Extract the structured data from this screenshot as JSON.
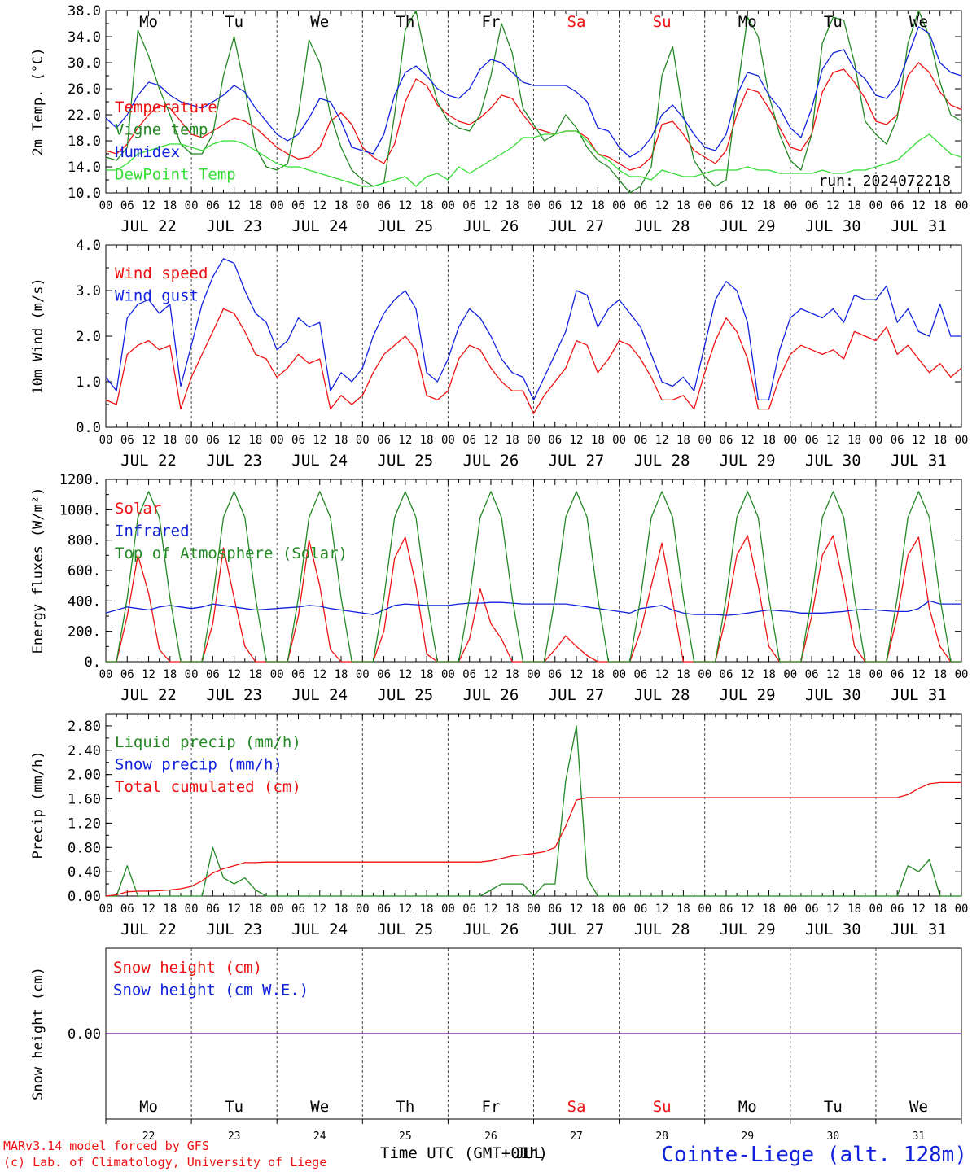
{
  "colors": {
    "red": "#ee1111",
    "green": "#228822",
    "blue": "#1122dd",
    "lightgreen": "#33dd33",
    "purple": "#7733aa",
    "grid": "#444444"
  },
  "days": {
    "names": [
      "Mo",
      "Tu",
      "We",
      "Th",
      "Fr",
      "Sa",
      "Su",
      "Mo",
      "Tu",
      "We"
    ],
    "weekend": [
      false,
      false,
      false,
      false,
      false,
      true,
      true,
      false,
      false,
      false
    ],
    "dates": [
      "JUL 22",
      "JUL 23",
      "JUL 24",
      "JUL 25",
      "JUL 26",
      "JUL 27",
      "JUL 28",
      "JUL 29",
      "JUL 30",
      "JUL 31"
    ],
    "numbers": [
      "22",
      "23",
      "24",
      "25",
      "26",
      "27",
      "28",
      "29",
      "30",
      "31"
    ],
    "hour_ticks": [
      "00",
      "06",
      "12",
      "18"
    ],
    "final_tick": "00"
  },
  "footer": {
    "model": "MARv3.14 model forced by GFS",
    "lab": "(c) Lab. of Climatology, University of Liege",
    "xlabel": "Time UTC (GMT+01h)",
    "overlay": "JUL",
    "station": "Cointe-Liege (alt. 128m)"
  },
  "chart_data": [
    {
      "id": "temperature",
      "type": "line",
      "ylabel": "2m Temp. (°C)",
      "ylim": [
        10,
        38
      ],
      "yticks": [
        "10.0",
        "14.0",
        "18.0",
        "22.0",
        "26.0",
        "30.0",
        "34.0",
        "38.0"
      ],
      "annotation": "run: 2024072218",
      "x": "hours since JUL 22 00 UTC, every 3 h",
      "series": [
        {
          "name": "Temperature",
          "color": "red",
          "values": [
            16.5,
            16.0,
            17.5,
            20.0,
            22.0,
            23.5,
            23.0,
            21.0,
            19.0,
            18.5,
            19.5,
            20.5,
            21.5,
            21.0,
            20.0,
            18.5,
            17.0,
            16.0,
            15.2,
            15.5,
            17.0,
            21.0,
            22.3,
            20.5,
            17.0,
            15.5,
            14.5,
            17.5,
            24.0,
            27.5,
            26.5,
            23.5,
            22.0,
            21.0,
            20.5,
            21.5,
            23.0,
            25.0,
            24.5,
            22.0,
            20.0,
            19.5,
            19.0,
            19.5,
            19.5,
            18.5,
            16.0,
            15.5,
            14.5,
            13.5,
            14.0,
            15.5,
            20.5,
            21.0,
            19.0,
            16.5,
            15.5,
            14.5,
            16.5,
            22.0,
            26.0,
            25.5,
            23.0,
            20.0,
            17.0,
            16.5,
            19.0,
            25.5,
            28.5,
            29.0,
            27.0,
            24.5,
            21.0,
            20.5,
            22.0,
            28.0,
            30.0,
            28.5,
            25.5,
            23.5,
            22.8
          ]
        },
        {
          "name": "Vigne temp",
          "color": "green",
          "values": [
            15.5,
            15.0,
            17.0,
            35.0,
            31.0,
            26.0,
            22.0,
            17.5,
            16.0,
            16.0,
            19.0,
            28.0,
            34.0,
            26.0,
            17.0,
            14.0,
            13.5,
            14.5,
            22.0,
            33.5,
            30.0,
            22.0,
            17.0,
            13.5,
            12.0,
            11.0,
            11.5,
            22.0,
            35.0,
            38.0,
            30.0,
            24.0,
            21.0,
            20.0,
            19.5,
            22.0,
            28.0,
            36.0,
            31.5,
            23.0,
            20.5,
            18.0,
            19.0,
            22.0,
            20.0,
            17.0,
            15.0,
            14.0,
            12.0,
            10.0,
            11.0,
            14.0,
            28.0,
            32.5,
            22.0,
            15.0,
            12.5,
            11.0,
            12.0,
            25.0,
            37.0,
            34.0,
            25.0,
            19.0,
            15.0,
            13.5,
            19.0,
            33.0,
            37.0,
            36.5,
            30.0,
            21.0,
            19.0,
            17.5,
            21.5,
            33.0,
            38.0,
            34.0,
            27.0,
            22.0,
            21.0
          ]
        },
        {
          "name": "Humidex",
          "color": "blue",
          "values": [
            21.5,
            20.0,
            22.0,
            25.0,
            27.0,
            26.5,
            25.0,
            24.0,
            23.5,
            23.0,
            24.0,
            25.0,
            26.5,
            25.5,
            23.0,
            21.0,
            19.0,
            18.0,
            19.0,
            21.5,
            24.5,
            24.0,
            21.0,
            17.0,
            16.5,
            16.0,
            19.0,
            25.0,
            28.5,
            29.5,
            28.0,
            26.0,
            25.0,
            24.5,
            26.0,
            29.0,
            30.5,
            30.0,
            28.5,
            27.0,
            26.5,
            26.5,
            26.5,
            26.5,
            25.5,
            24.0,
            20.0,
            19.5,
            17.0,
            15.5,
            16.5,
            18.5,
            22.0,
            23.5,
            21.5,
            19.0,
            17.0,
            16.5,
            19.0,
            25.0,
            28.5,
            28.0,
            25.0,
            23.0,
            20.0,
            18.5,
            23.0,
            29.0,
            31.5,
            32.0,
            29.0,
            27.5,
            25.0,
            24.5,
            26.5,
            31.0,
            35.5,
            34.5,
            30.0,
            28.5,
            28.0
          ]
        },
        {
          "name": "DewPoint Temp",
          "color": "lightgreen",
          "values": [
            13.5,
            13.5,
            14.5,
            16.0,
            16.5,
            17.0,
            17.5,
            17.5,
            17.0,
            16.5,
            17.5,
            18.0,
            18.0,
            17.5,
            16.5,
            15.5,
            14.5,
            14.0,
            14.0,
            13.5,
            13.0,
            12.5,
            12.0,
            11.5,
            11.0,
            11.0,
            11.5,
            12.0,
            12.5,
            11.0,
            12.5,
            13.0,
            12.0,
            14.0,
            13.0,
            14.0,
            15.0,
            16.0,
            17.0,
            18.5,
            18.5,
            19.0,
            19.0,
            19.5,
            19.5,
            18.0,
            16.0,
            15.0,
            13.5,
            12.5,
            12.5,
            12.0,
            13.5,
            13.0,
            12.5,
            12.5,
            13.0,
            13.5,
            13.5,
            13.5,
            14.0,
            13.5,
            13.5,
            13.0,
            13.0,
            13.0,
            13.0,
            13.5,
            13.0,
            13.0,
            13.5,
            13.5,
            14.0,
            14.5,
            15.0,
            16.5,
            18.0,
            19.0,
            17.5,
            16.0,
            15.5
          ]
        }
      ]
    },
    {
      "id": "wind",
      "type": "line",
      "ylabel": "10m Wind (m/s)",
      "ylim": [
        0,
        4
      ],
      "yticks": [
        "0.0",
        "1.0",
        "2.0",
        "3.0",
        "4.0"
      ],
      "x": "hours since JUL 22 00 UTC, every 3 h",
      "series": [
        {
          "name": "Wind speed",
          "color": "red",
          "values": [
            0.6,
            0.5,
            1.6,
            1.8,
            1.9,
            1.7,
            1.8,
            0.4,
            1.1,
            1.6,
            2.1,
            2.6,
            2.5,
            2.1,
            1.6,
            1.5,
            1.1,
            1.3,
            1.6,
            1.4,
            1.5,
            0.4,
            0.7,
            0.5,
            0.7,
            1.2,
            1.6,
            1.8,
            2.0,
            1.7,
            0.7,
            0.6,
            0.8,
            1.5,
            1.8,
            1.7,
            1.3,
            1.0,
            0.8,
            0.8,
            0.3,
            0.7,
            1.0,
            1.3,
            1.9,
            1.8,
            1.2,
            1.5,
            1.9,
            1.8,
            1.5,
            1.1,
            0.6,
            0.6,
            0.7,
            0.4,
            1.2,
            1.9,
            2.4,
            2.1,
            1.5,
            0.4,
            0.4,
            1.1,
            1.6,
            1.8,
            1.7,
            1.6,
            1.7,
            1.5,
            2.1,
            2.0,
            1.9,
            2.2,
            1.6,
            1.8,
            1.5,
            1.2,
            1.4,
            1.1,
            1.3
          ]
        },
        {
          "name": "Wind gust",
          "color": "blue",
          "values": [
            1.1,
            0.8,
            2.4,
            2.7,
            2.8,
            2.5,
            2.7,
            0.9,
            1.8,
            2.7,
            3.3,
            3.7,
            3.6,
            3.0,
            2.5,
            2.3,
            1.7,
            1.9,
            2.4,
            2.2,
            2.3,
            0.8,
            1.2,
            1.0,
            1.3,
            2.0,
            2.5,
            2.8,
            3.0,
            2.6,
            1.2,
            1.0,
            1.5,
            2.2,
            2.6,
            2.4,
            2.0,
            1.5,
            1.2,
            1.1,
            0.6,
            1.1,
            1.6,
            2.1,
            3.0,
            2.9,
            2.2,
            2.6,
            2.8,
            2.5,
            2.2,
            1.6,
            1.0,
            0.9,
            1.1,
            0.8,
            1.8,
            2.8,
            3.2,
            3.0,
            2.3,
            0.6,
            0.6,
            1.7,
            2.4,
            2.6,
            2.5,
            2.4,
            2.6,
            2.3,
            2.9,
            2.8,
            2.8,
            3.1,
            2.3,
            2.6,
            2.1,
            2.0,
            2.7,
            2.0,
            2.0
          ]
        }
      ]
    },
    {
      "id": "energy",
      "type": "line",
      "ylabel": "Energy fluxes (W/m²)",
      "ylim": [
        0,
        1200
      ],
      "yticks": [
        "0.",
        "200.",
        "400.",
        "600.",
        "800.",
        "1000.",
        "1200."
      ],
      "x": "hours since JUL 22 00 UTC, every 3 h",
      "series": [
        {
          "name": "Solar",
          "color": "red",
          "values": [
            0,
            0,
            300,
            700,
            450,
            80,
            0,
            0,
            0,
            0,
            250,
            750,
            420,
            100,
            0,
            0,
            0,
            0,
            300,
            800,
            500,
            80,
            0,
            0,
            0,
            0,
            200,
            680,
            820,
            500,
            50,
            0,
            0,
            0,
            150,
            480,
            250,
            150,
            0,
            0,
            0,
            0,
            80,
            170,
            100,
            40,
            0,
            0,
            0,
            0,
            200,
            500,
            780,
            400,
            0,
            0,
            0,
            0,
            300,
            700,
            830,
            500,
            100,
            0,
            0,
            0,
            300,
            700,
            830,
            500,
            100,
            0,
            0,
            0,
            300,
            700,
            820,
            350,
            100,
            0,
            0
          ]
        },
        {
          "name": "Infrared",
          "color": "blue",
          "values": [
            320,
            340,
            360,
            350,
            340,
            360,
            370,
            360,
            350,
            360,
            380,
            370,
            360,
            350,
            340,
            345,
            350,
            355,
            360,
            370,
            365,
            350,
            340,
            330,
            320,
            310,
            340,
            370,
            380,
            375,
            370,
            370,
            370,
            380,
            385,
            385,
            390,
            390,
            385,
            380,
            380,
            380,
            380,
            380,
            370,
            360,
            350,
            340,
            330,
            320,
            350,
            360,
            370,
            340,
            320,
            310,
            310,
            310,
            305,
            310,
            320,
            330,
            340,
            335,
            330,
            320,
            320,
            320,
            325,
            330,
            340,
            345,
            340,
            335,
            330,
            330,
            350,
            400,
            380,
            380,
            380
          ]
        },
        {
          "name": "Top of Atmosphere (Solar)",
          "color": "green",
          "values": [
            0,
            0,
            420,
            950,
            1120,
            950,
            420,
            0,
            0,
            0,
            420,
            950,
            1120,
            950,
            420,
            0,
            0,
            0,
            420,
            950,
            1120,
            950,
            420,
            0,
            0,
            0,
            420,
            950,
            1120,
            950,
            420,
            0,
            0,
            0,
            420,
            950,
            1120,
            950,
            420,
            0,
            0,
            0,
            420,
            950,
            1120,
            950,
            420,
            0,
            0,
            0,
            420,
            950,
            1120,
            950,
            420,
            0,
            0,
            0,
            420,
            950,
            1120,
            950,
            420,
            0,
            0,
            0,
            420,
            950,
            1120,
            950,
            420,
            0,
            0,
            0,
            420,
            950,
            1120,
            950,
            420,
            0,
            0
          ]
        }
      ]
    },
    {
      "id": "precip",
      "type": "line",
      "ylabel": "Precip (mm/h)",
      "ylim": [
        0,
        3
      ],
      "yticks": [
        "0.00",
        "0.40",
        "0.80",
        "1.20",
        "1.60",
        "2.00",
        "2.40",
        "2.80"
      ],
      "x": "hours since JUL 22 00 UTC, every 3 h",
      "series": [
        {
          "name": "Liquid precip (mm/h)",
          "color": "green",
          "values": [
            0,
            0,
            0.5,
            0,
            0,
            0,
            0,
            0,
            0,
            0,
            0.8,
            0.3,
            0.2,
            0.3,
            0.1,
            0,
            0,
            0,
            0,
            0,
            0,
            0,
            0,
            0,
            0,
            0,
            0,
            0,
            0,
            0,
            0,
            0,
            0,
            0,
            0,
            0,
            0.1,
            0.2,
            0.2,
            0.2,
            0,
            0.2,
            0.2,
            1.9,
            2.8,
            0.3,
            0,
            0,
            0,
            0,
            0,
            0,
            0,
            0,
            0,
            0,
            0,
            0,
            0,
            0,
            0,
            0,
            0,
            0,
            0,
            0,
            0,
            0,
            0,
            0,
            0,
            0,
            0,
            0,
            0,
            0.5,
            0.4,
            0.6,
            0,
            0,
            0
          ]
        },
        {
          "name": "Snow precip (mm/h)",
          "color": "blue",
          "values": []
        },
        {
          "name": "Total cumulated (cm)",
          "color": "red",
          "values": [
            0,
            0.02,
            0.07,
            0.08,
            0.08,
            0.09,
            0.1,
            0.12,
            0.16,
            0.25,
            0.38,
            0.45,
            0.5,
            0.55,
            0.55,
            0.56,
            0.56,
            0.56,
            0.56,
            0.56,
            0.56,
            0.56,
            0.56,
            0.56,
            0.56,
            0.56,
            0.56,
            0.56,
            0.56,
            0.56,
            0.56,
            0.56,
            0.56,
            0.56,
            0.56,
            0.56,
            0.58,
            0.62,
            0.66,
            0.68,
            0.7,
            0.73,
            0.8,
            1.15,
            1.58,
            1.62,
            1.62,
            1.62,
            1.62,
            1.62,
            1.62,
            1.62,
            1.62,
            1.62,
            1.62,
            1.62,
            1.62,
            1.62,
            1.62,
            1.62,
            1.62,
            1.62,
            1.62,
            1.62,
            1.62,
            1.62,
            1.62,
            1.62,
            1.62,
            1.62,
            1.62,
            1.62,
            1.62,
            1.62,
            1.62,
            1.67,
            1.77,
            1.85,
            1.87,
            1.87,
            1.87
          ]
        }
      ]
    },
    {
      "id": "snow",
      "type": "line",
      "ylabel": "Snow height (cm)",
      "yticks": [
        "0.00"
      ],
      "x": "hours since JUL 22 00 UTC, every 3 h",
      "series": [
        {
          "name": "Snow height (cm)",
          "color": "red",
          "values": [
            0,
            0
          ]
        },
        {
          "name": "Snow height (cm W.E.)",
          "color": "blue",
          "values": [
            0,
            0
          ]
        }
      ]
    }
  ]
}
